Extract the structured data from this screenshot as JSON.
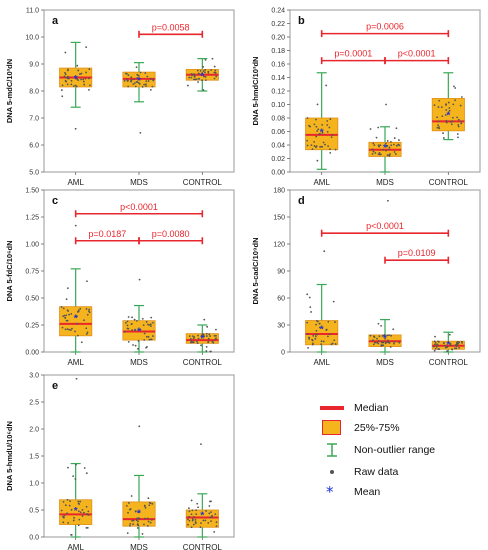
{
  "chart_data": [
    {
      "id": "a",
      "type": "box",
      "panel_label": "a",
      "ylabel": "DNA 5-mdC/10³dN",
      "ylim": [
        5.0,
        11.0
      ],
      "yticks": [
        "5.0",
        "6.0",
        "7.0",
        "8.0",
        "9.0",
        "10.0",
        "11.0"
      ],
      "categories": [
        "AML",
        "MDS",
        "CONTROL"
      ],
      "boxes": [
        {
          "q1": 8.15,
          "median": 8.5,
          "q3": 8.85,
          "whisker_low": 7.4,
          "whisker_high": 9.8,
          "mean": 8.48,
          "outliers": [
            6.6
          ]
        },
        {
          "q1": 8.15,
          "median": 8.45,
          "q3": 8.7,
          "whisker_low": 7.6,
          "whisker_high": 9.05,
          "mean": 8.4,
          "outliers": [
            6.45
          ]
        },
        {
          "q1": 8.4,
          "median": 8.6,
          "q3": 8.8,
          "whisker_low": 8.0,
          "whisker_high": 9.2,
          "mean": 8.58,
          "outliers": []
        }
      ],
      "comparisons": [
        {
          "from": 1,
          "to": 2,
          "y": 10.1,
          "label": "p=0.0058"
        }
      ]
    },
    {
      "id": "b",
      "type": "box",
      "panel_label": "b",
      "ylabel": "DNA 5-hmdC/10³dN",
      "ylim": [
        0.0,
        0.24
      ],
      "yticks": [
        "0.00",
        "0.02",
        "0.04",
        "0.06",
        "0.08",
        "0.10",
        "0.12",
        "0.14",
        "0.16",
        "0.18",
        "0.20",
        "0.22",
        "0.24"
      ],
      "categories": [
        "AML",
        "MDS",
        "CONTROL"
      ],
      "boxes": [
        {
          "q1": 0.033,
          "median": 0.055,
          "q3": 0.08,
          "whisker_low": 0.004,
          "whisker_high": 0.147,
          "mean": 0.06,
          "outliers": []
        },
        {
          "q1": 0.023,
          "median": 0.033,
          "q3": 0.044,
          "whisker_low": 0.0,
          "whisker_high": 0.067,
          "mean": 0.037,
          "outliers": [
            0.1
          ]
        },
        {
          "q1": 0.061,
          "median": 0.075,
          "q3": 0.109,
          "whisker_low": 0.048,
          "whisker_high": 0.147,
          "mean": 0.085,
          "outliers": []
        }
      ],
      "comparisons": [
        {
          "from": 0,
          "to": 2,
          "y": 0.205,
          "label": "p=0.0006"
        },
        {
          "from": 0,
          "to": 1,
          "y": 0.165,
          "label": "p=0.0001"
        },
        {
          "from": 1,
          "to": 2,
          "y": 0.165,
          "label": "p<0.0001"
        }
      ]
    },
    {
      "id": "c",
      "type": "box",
      "panel_label": "c",
      "ylabel": "DNA 5-fdC/10⁶dN",
      "ylim": [
        0.0,
        1.5
      ],
      "yticks": [
        "0.00",
        "0.25",
        "0.50",
        "0.75",
        "1.00",
        "1.25",
        "1.50"
      ],
      "categories": [
        "AML",
        "MDS",
        "CONTROL"
      ],
      "boxes": [
        {
          "q1": 0.15,
          "median": 0.26,
          "q3": 0.42,
          "whisker_low": 0.0,
          "whisker_high": 0.77,
          "mean": 0.32,
          "outliers": [
            1.17
          ]
        },
        {
          "q1": 0.11,
          "median": 0.19,
          "q3": 0.29,
          "whisker_low": 0.0,
          "whisker_high": 0.43,
          "mean": 0.2,
          "outliers": [
            0.67
          ]
        },
        {
          "q1": 0.08,
          "median": 0.11,
          "q3": 0.17,
          "whisker_low": 0.0,
          "whisker_high": 0.25,
          "mean": 0.13,
          "outliers": [
            0.3
          ]
        }
      ],
      "comparisons": [
        {
          "from": 0,
          "to": 2,
          "y": 1.28,
          "label": "p<0.0001"
        },
        {
          "from": 0,
          "to": 1,
          "y": 1.03,
          "label": "p=0.0187"
        },
        {
          "from": 1,
          "to": 2,
          "y": 1.03,
          "label": "p=0.0080"
        }
      ]
    },
    {
      "id": "d",
      "type": "box",
      "panel_label": "d",
      "ylabel": "DNA 5-cadC/10⁹dN",
      "ylim": [
        0,
        180
      ],
      "yticks": [
        "0",
        "30",
        "60",
        "90",
        "120",
        "150",
        "180"
      ],
      "categories": [
        "AML",
        "MDS",
        "CONTROL"
      ],
      "boxes": [
        {
          "q1": 8,
          "median": 20,
          "q3": 35,
          "whisker_low": 0,
          "whisker_high": 75,
          "mean": 26,
          "outliers": [
            112
          ]
        },
        {
          "q1": 6,
          "median": 12,
          "q3": 19,
          "whisker_low": 0,
          "whisker_high": 36,
          "mean": 16,
          "outliers": [
            168
          ]
        },
        {
          "q1": 3,
          "median": 7,
          "q3": 12,
          "whisker_low": 0,
          "whisker_high": 22,
          "mean": 9,
          "outliers": []
        }
      ],
      "comparisons": [
        {
          "from": 0,
          "to": 2,
          "y": 132,
          "label": "p<0.0001"
        },
        {
          "from": 1,
          "to": 2,
          "y": 102,
          "label": "p=0.0109"
        }
      ]
    },
    {
      "id": "e",
      "type": "box",
      "panel_label": "e",
      "ylabel": "DNA 5-hmdU/10⁶dN",
      "ylim": [
        0.0,
        3.0
      ],
      "yticks": [
        "0.0",
        "0.5",
        "1.0",
        "1.5",
        "2.0",
        "2.5",
        "3.0"
      ],
      "categories": [
        "AML",
        "MDS",
        "CONTROL"
      ],
      "boxes": [
        {
          "q1": 0.23,
          "median": 0.42,
          "q3": 0.69,
          "whisker_low": 0.0,
          "whisker_high": 1.36,
          "mean": 0.5,
          "outliers": [
            2.93
          ]
        },
        {
          "q1": 0.2,
          "median": 0.33,
          "q3": 0.65,
          "whisker_low": 0.0,
          "whisker_high": 1.14,
          "mean": 0.45,
          "outliers": [
            2.05
          ]
        },
        {
          "q1": 0.18,
          "median": 0.36,
          "q3": 0.5,
          "whisker_low": 0.0,
          "whisker_high": 0.8,
          "mean": 0.42,
          "outliers": [
            1.72
          ]
        }
      ],
      "comparisons": []
    }
  ],
  "legend": {
    "items": [
      {
        "key": "median",
        "label": "Median"
      },
      {
        "key": "iqr",
        "label": "25%-75%"
      },
      {
        "key": "range",
        "label": "Non-outlier range"
      },
      {
        "key": "raw",
        "label": "Raw data"
      },
      {
        "key": "mean",
        "label": "Mean"
      }
    ]
  },
  "colors": {
    "box_fill": "#f5b41e",
    "box_edge": "#e0901a",
    "median": "#e8262d",
    "whisker": "#3aa856",
    "mean": "#1f2fd6",
    "raw": "#555555",
    "comparison": "#e8262d",
    "frame": "#9a9a9a"
  }
}
